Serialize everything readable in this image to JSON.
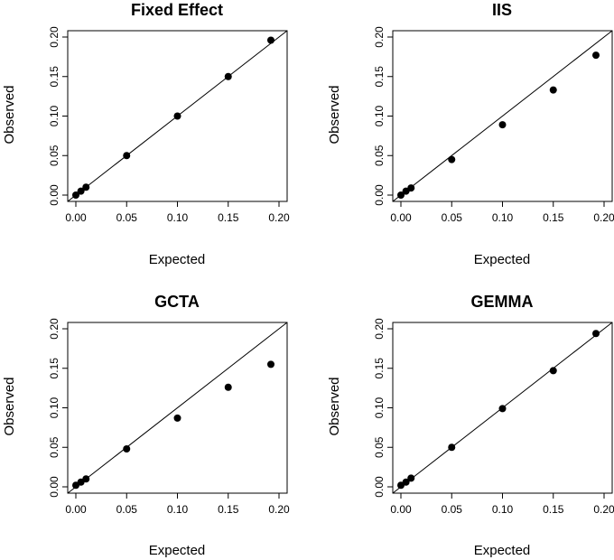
{
  "figure": {
    "panels": [
      {
        "title": "Fixed Effect",
        "xlabel": "Expected",
        "ylabel": "Observed"
      },
      {
        "title": "IIS",
        "xlabel": "Expected",
        "ylabel": "Observed"
      },
      {
        "title": "GCTA",
        "xlabel": "Expected",
        "ylabel": "Observed"
      },
      {
        "title": "GEMMA",
        "xlabel": "Expected",
        "ylabel": "Observed"
      }
    ]
  },
  "chart_data": [
    {
      "type": "scatter",
      "title": "Fixed Effect",
      "xlabel": "Expected",
      "ylabel": "Observed",
      "xlim": [
        0,
        0.2
      ],
      "ylim": [
        0,
        0.2
      ],
      "xticks": [
        "0.00",
        "0.05",
        "0.10",
        "0.15",
        "0.20"
      ],
      "yticks": [
        "0.00",
        "0.05",
        "0.10",
        "0.15",
        "0.20"
      ],
      "reference_line": "y = x",
      "x": [
        0.0,
        0.005,
        0.01,
        0.05,
        0.1,
        0.15,
        0.192
      ],
      "y": [
        0.0,
        0.005,
        0.01,
        0.05,
        0.1,
        0.15,
        0.196
      ]
    },
    {
      "type": "scatter",
      "title": "IIS",
      "xlabel": "Expected",
      "ylabel": "Observed",
      "xlim": [
        0,
        0.2
      ],
      "ylim": [
        0,
        0.2
      ],
      "xticks": [
        "0.00",
        "0.05",
        "0.10",
        "0.15",
        "0.20"
      ],
      "yticks": [
        "0.00",
        "0.05",
        "0.10",
        "0.15",
        "0.20"
      ],
      "reference_line": "y = x",
      "x": [
        0.0,
        0.005,
        0.01,
        0.05,
        0.1,
        0.15,
        0.192
      ],
      "y": [
        0.0,
        0.005,
        0.009,
        0.045,
        0.089,
        0.133,
        0.177
      ]
    },
    {
      "type": "scatter",
      "title": "GCTA",
      "xlabel": "Expected",
      "ylabel": "Observed",
      "xlim": [
        0,
        0.2
      ],
      "ylim": [
        0,
        0.2
      ],
      "xticks": [
        "0.00",
        "0.05",
        "0.10",
        "0.15",
        "0.20"
      ],
      "yticks": [
        "0.00",
        "0.05",
        "0.10",
        "0.15",
        "0.20"
      ],
      "reference_line": "y = x",
      "x": [
        0.0,
        0.005,
        0.01,
        0.05,
        0.1,
        0.15,
        0.192
      ],
      "y": [
        0.002,
        0.006,
        0.01,
        0.048,
        0.087,
        0.126,
        0.155
      ]
    },
    {
      "type": "scatter",
      "title": "GEMMA",
      "xlabel": "Expected",
      "ylabel": "Observed",
      "xlim": [
        0,
        0.2
      ],
      "ylim": [
        0,
        0.2
      ],
      "xticks": [
        "0.00",
        "0.05",
        "0.10",
        "0.15",
        "0.20"
      ],
      "yticks": [
        "0.00",
        "0.05",
        "0.10",
        "0.15",
        "0.20"
      ],
      "reference_line": "y = x",
      "x": [
        0.0,
        0.005,
        0.01,
        0.05,
        0.1,
        0.15,
        0.192
      ],
      "y": [
        0.002,
        0.006,
        0.011,
        0.05,
        0.099,
        0.147,
        0.194
      ]
    }
  ]
}
